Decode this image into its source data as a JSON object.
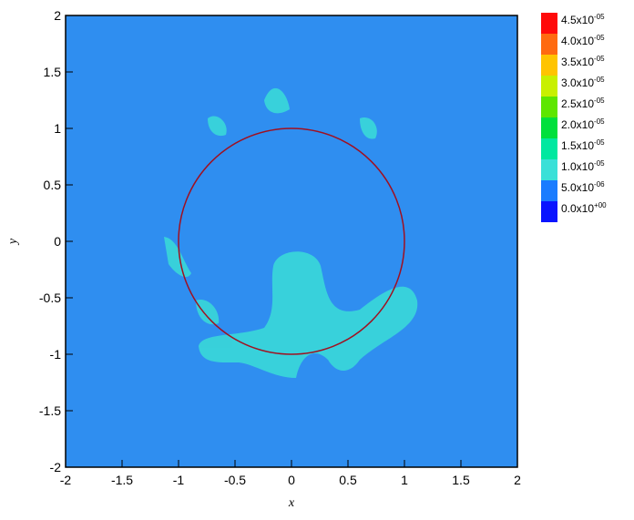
{
  "chart_data": {
    "type": "contour",
    "x_label": "x",
    "y_label": "y",
    "xlim": [
      -2,
      2
    ],
    "ylim": [
      -2,
      2
    ],
    "xticks": [
      -2,
      -1.5,
      -1,
      -0.5,
      0,
      0.5,
      1,
      1.5,
      2
    ],
    "yticks": [
      -2,
      -1.5,
      -1,
      -0.5,
      0,
      0.5,
      1,
      1.5,
      2
    ],
    "field_color": "#2f8ef0",
    "colorbar": [
      {
        "value": 4.5e-05,
        "label": "4.5x10",
        "sup": "-05",
        "color": "#ff0a0a"
      },
      {
        "value": 4e-05,
        "label": "4.0x10",
        "sup": "-05",
        "color": "#ff6a10"
      },
      {
        "value": 3.5e-05,
        "label": "3.5x10",
        "sup": "-05",
        "color": "#ffc400"
      },
      {
        "value": 3e-05,
        "label": "3.0x10",
        "sup": "-05",
        "color": "#c8f000"
      },
      {
        "value": 2.5e-05,
        "label": "2.5x10",
        "sup": "-05",
        "color": "#5ee600"
      },
      {
        "value": 2e-05,
        "label": "2.0x10",
        "sup": "-05",
        "color": "#00e03c"
      },
      {
        "value": 1.5e-05,
        "label": "1.5x10",
        "sup": "-05",
        "color": "#00e8a0"
      },
      {
        "value": 1e-05,
        "label": "1.0x10",
        "sup": "-05",
        "color": "#3ae0d8"
      },
      {
        "value": 5e-06,
        "label": "5.0x10",
        "sup": "-06",
        "color": "#1a7cff"
      },
      {
        "value": 0,
        "label": "0.0x10",
        "sup": "+00",
        "color": "#0a14ff"
      }
    ]
  }
}
